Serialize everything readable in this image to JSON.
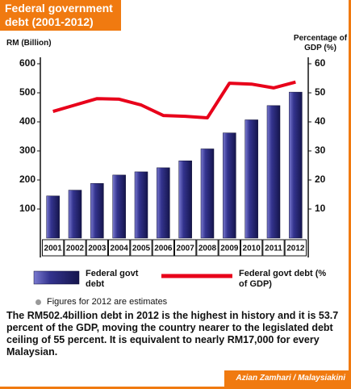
{
  "chart_data": {
    "type": "bar",
    "title": "Federal government debt (2001-2012)",
    "ylabel": "RM (Billion)",
    "y2label": "Percentage of GDP (%)",
    "categories": [
      "2001",
      "2002",
      "2003",
      "2004",
      "2005",
      "2006",
      "2007",
      "2008",
      "2009",
      "2010",
      "2011",
      "2012"
    ],
    "series": [
      {
        "name": "Federal govt debt",
        "type": "bar",
        "color": "#34348f",
        "values": [
          145,
          165,
          188,
          217,
          228,
          242,
          266,
          307,
          362,
          407,
          456,
          502.4
        ]
      },
      {
        "name": "Federal govt debt (% of GDP)",
        "type": "line",
        "axis": "y2",
        "color": "#e8001a",
        "values": [
          43.6,
          45.8,
          48,
          47.8,
          45.8,
          42.2,
          41.9,
          41.4,
          53.3,
          53,
          51.7,
          53.7
        ]
      }
    ],
    "ylim": [
      0,
      600
    ],
    "yticks": [
      100,
      200,
      300,
      400,
      500,
      600
    ],
    "y2lim": [
      0,
      60
    ],
    "y2ticks": [
      10,
      20,
      30,
      40,
      50,
      60
    ],
    "grid": false,
    "note": "Figures for 2012 are estimates",
    "caption": "The RM502.4billion debt in 2012 is the highest in history and it is 53.7 percent of the GDP, moving the country nearer to the legislated debt ceiling of 55 percent. It is equivalent to nearly RM17,000 for every Malaysian.",
    "credit": "Azian Zamhari / Malaysiakini"
  }
}
